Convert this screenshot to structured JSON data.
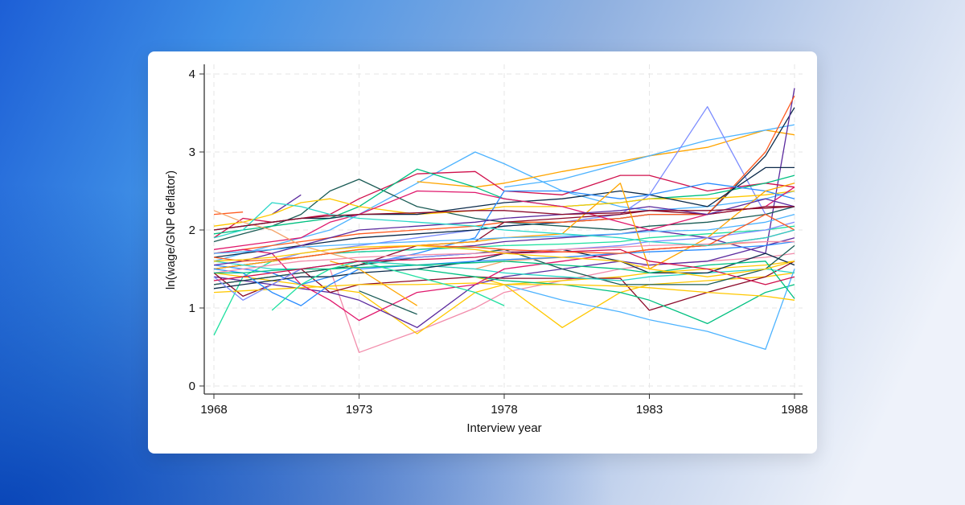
{
  "chart_data": {
    "type": "line",
    "title": "",
    "xlabel": "Interview year",
    "ylabel": "ln(wage/GNP deflator)",
    "xlim": [
      1968,
      1988
    ],
    "ylim": [
      0,
      4
    ],
    "xticks": [
      "1968",
      "1973",
      "1978",
      "1983",
      "1988"
    ],
    "yticks": [
      "0",
      "1",
      "2",
      "3",
      "4"
    ],
    "grid": true,
    "legend": "none",
    "x": [
      1968,
      1969,
      1970,
      1971,
      1972,
      1973,
      1975,
      1977,
      1978,
      1980,
      1982,
      1983,
      1985,
      1987,
      1988
    ],
    "series": [
      {
        "color": "#4DB3FF",
        "values": [
          1.6,
          1.7,
          1.8,
          1.9,
          2.0,
          2.2,
          2.6,
          3.0,
          2.85,
          2.5,
          2.3,
          2.25,
          2.3,
          2.4,
          2.5
        ]
      },
      {
        "color": "#FFA500",
        "values": [
          null,
          null,
          null,
          null,
          null,
          null,
          2.62,
          2.55,
          2.6,
          2.75,
          2.88,
          2.95,
          3.06,
          3.28,
          3.22
        ]
      },
      {
        "color": "#4DB3FF",
        "values": [
          null,
          null,
          null,
          null,
          null,
          null,
          null,
          null,
          2.55,
          2.65,
          2.85,
          2.95,
          3.15,
          3.28,
          3.35
        ]
      },
      {
        "color": "#7B8CFF",
        "values": [
          1.5,
          1.55,
          1.6,
          1.7,
          1.75,
          1.8,
          1.9,
          2.0,
          2.05,
          2.1,
          2.2,
          2.45,
          3.58,
          2.2,
          2.3
        ]
      },
      {
        "color": "#0B2A4A",
        "values": [
          1.65,
          1.7,
          1.75,
          1.8,
          1.85,
          1.9,
          1.95,
          2.0,
          2.05,
          2.1,
          2.15,
          2.2,
          2.2,
          2.95,
          3.57
        ]
      },
      {
        "color": "#5B2A9E",
        "values": [
          1.5,
          1.55,
          1.6,
          1.65,
          1.7,
          1.72,
          1.75,
          1.8,
          1.85,
          1.9,
          1.95,
          2.0,
          1.9,
          1.7,
          3.82
        ]
      },
      {
        "color": "#FF5A1F",
        "values": [
          1.7,
          1.75,
          1.8,
          1.85,
          1.9,
          1.95,
          2.0,
          2.05,
          2.1,
          2.1,
          2.15,
          2.2,
          2.2,
          3.0,
          3.72
        ]
      },
      {
        "color": "#F28CAB",
        "values": [
          null,
          null,
          null,
          null,
          1.5,
          0.43,
          0.7,
          1.0,
          1.2,
          1.35,
          1.5,
          1.55,
          1.6,
          1.65,
          1.7
        ]
      },
      {
        "color": "#1FE0A0",
        "values": [
          0.65,
          1.4,
          1.6,
          1.65,
          1.7,
          1.72,
          1.75,
          1.78,
          1.8,
          1.82,
          1.85,
          1.9,
          1.95,
          2.0,
          2.05
        ]
      },
      {
        "color": "#FFC800",
        "values": [
          1.45,
          1.4,
          1.35,
          1.3,
          1.25,
          1.2,
          0.67,
          1.2,
          1.3,
          1.35,
          1.4,
          1.45,
          1.5,
          1.55,
          1.6
        ]
      },
      {
        "color": "#FFC800",
        "values": [
          null,
          null,
          null,
          null,
          null,
          null,
          null,
          1.4,
          1.3,
          0.75,
          1.2,
          1.3,
          1.35,
          1.4,
          1.45
        ]
      },
      {
        "color": "#5B2A9E",
        "values": [
          1.4,
          1.35,
          1.3,
          1.25,
          1.2,
          1.1,
          0.75,
          1.3,
          1.4,
          1.5,
          1.6,
          1.55,
          1.6,
          1.8,
          1.9
        ]
      },
      {
        "color": "#8B0A2A",
        "values": [
          1.45,
          1.15,
          1.3,
          1.5,
          1.2,
          1.3,
          1.35,
          1.4,
          1.38,
          1.38,
          1.38,
          0.97,
          1.2,
          1.4,
          1.6
        ]
      },
      {
        "color": "#00C080",
        "values": [
          null,
          null,
          null,
          null,
          null,
          null,
          1.5,
          1.4,
          1.35,
          1.3,
          1.2,
          1.1,
          0.8,
          1.2,
          1.3
        ]
      },
      {
        "color": "#4DB3FF",
        "values": [
          null,
          null,
          null,
          null,
          null,
          null,
          null,
          null,
          1.3,
          1.1,
          0.95,
          0.85,
          0.7,
          0.47,
          1.5
        ]
      },
      {
        "color": "#D0104C",
        "values": [
          1.9,
          2.15,
          2.1,
          2.15,
          2.2,
          2.4,
          2.72,
          2.75,
          2.5,
          2.45,
          2.7,
          2.7,
          2.5,
          2.6,
          2.55
        ]
      },
      {
        "color": "#1A5B55",
        "values": [
          1.85,
          1.95,
          2.05,
          2.2,
          2.5,
          2.65,
          2.3,
          2.15,
          2.1,
          2.05,
          2.0,
          2.05,
          2.1,
          2.2,
          2.3
        ]
      },
      {
        "color": "#00C080",
        "values": [
          1.95,
          2.0,
          2.05,
          2.1,
          2.15,
          2.3,
          2.78,
          2.55,
          2.4,
          2.3,
          2.35,
          2.4,
          2.45,
          2.6,
          2.7
        ]
      },
      {
        "color": "#FF5A1F",
        "values": [
          2.2,
          2.23,
          null,
          null,
          null,
          null,
          null,
          null,
          null,
          null,
          null,
          null,
          null,
          null,
          null
        ]
      },
      {
        "color": "#5B2A9E",
        "values": [
          null,
          null,
          2.2,
          2.45,
          null,
          null,
          null,
          null,
          null,
          null,
          null,
          null,
          null,
          null,
          null
        ]
      },
      {
        "color": "#FFC800",
        "values": [
          2.05,
          2.1,
          2.2,
          2.35,
          2.4,
          2.3,
          2.2,
          2.25,
          2.3,
          2.3,
          2.35,
          2.4,
          2.4,
          2.45,
          2.5
        ]
      },
      {
        "color": "#0B2A4A",
        "values": [
          2.0,
          2.05,
          2.1,
          2.15,
          2.15,
          2.2,
          2.2,
          2.3,
          2.35,
          2.4,
          2.5,
          2.45,
          2.3,
          2.8,
          2.8
        ]
      },
      {
        "color": "#E0186C",
        "values": [
          1.75,
          1.8,
          1.85,
          1.9,
          2.1,
          2.2,
          2.5,
          2.48,
          2.4,
          2.3,
          2.1,
          2.0,
          2.2,
          2.3,
          2.55
        ]
      },
      {
        "color": "#2A8CFF",
        "values": [
          1.55,
          1.5,
          1.45,
          1.3,
          1.4,
          1.55,
          1.7,
          1.9,
          2.5,
          2.5,
          2.4,
          2.45,
          2.6,
          2.5,
          2.4
        ]
      },
      {
        "color": "#8B0A2A",
        "values": [
          1.3,
          1.35,
          1.4,
          1.45,
          1.5,
          1.55,
          1.8,
          1.85,
          2.1,
          2.15,
          2.2,
          2.25,
          2.2,
          2.3,
          2.3
        ]
      },
      {
        "color": "#FFA500",
        "values": [
          1.5,
          1.55,
          1.6,
          1.65,
          1.7,
          1.75,
          1.8,
          1.85,
          1.9,
          1.95,
          2.6,
          1.5,
          1.9,
          2.5,
          2.6
        ]
      },
      {
        "color": "#1A5B55",
        "values": [
          1.3,
          1.35,
          1.4,
          1.45,
          1.5,
          1.55,
          1.65,
          1.7,
          1.75,
          1.5,
          1.3,
          1.3,
          1.3,
          1.5,
          1.8
        ]
      },
      {
        "color": "#F4A46A",
        "values": [
          2.25,
          2.1,
          2.0,
          1.8,
          1.7,
          1.6,
          1.55,
          1.5,
          1.6,
          1.65,
          1.7,
          1.75,
          1.8,
          1.85,
          1.85
        ]
      },
      {
        "color": "#2AD6C8",
        "values": [
          1.6,
          1.55,
          1.5,
          1.5,
          1.55,
          1.6,
          1.55,
          1.5,
          1.45,
          1.4,
          1.35,
          1.4,
          1.45,
          1.5,
          1.45
        ]
      },
      {
        "color": "#0B2A4A",
        "values": [
          1.25,
          1.3,
          1.35,
          1.4,
          1.4,
          1.45,
          1.5,
          1.6,
          1.7,
          1.75,
          1.6,
          1.45,
          1.45,
          1.7,
          1.55
        ]
      },
      {
        "color": "#FFC800",
        "values": [
          1.2,
          1.22,
          1.24,
          1.26,
          1.28,
          1.3,
          1.3,
          1.32,
          1.3,
          1.3,
          1.28,
          1.26,
          1.2,
          1.15,
          1.1
        ]
      },
      {
        "color": "#E0186C",
        "values": [
          1.7,
          1.75,
          1.7,
          1.3,
          1.1,
          0.84,
          1.2,
          1.3,
          1.5,
          1.6,
          1.7,
          1.75,
          1.8,
          1.9,
          2.0
        ]
      },
      {
        "color": "#7B8CFF",
        "values": [
          1.4,
          1.1,
          1.3,
          1.5,
          1.55,
          1.6,
          1.65,
          1.7,
          1.72,
          1.75,
          1.8,
          1.85,
          1.9,
          2.0,
          2.1
        ]
      },
      {
        "color": "#2A8CFF",
        "values": [
          1.5,
          1.45,
          1.2,
          1.03,
          1.3,
          1.5,
          1.55,
          1.6,
          1.62,
          1.65,
          1.7,
          1.72,
          1.75,
          1.8,
          1.85
        ]
      },
      {
        "color": "#1A5B55",
        "values": [
          null,
          null,
          null,
          null,
          null,
          1.22,
          0.92,
          null,
          null,
          null,
          null,
          null,
          null,
          null,
          null
        ]
      },
      {
        "color": "#FFA500",
        "values": [
          null,
          null,
          null,
          null,
          1.6,
          1.5,
          1.03,
          null,
          null,
          null,
          null,
          null,
          null,
          null,
          null
        ]
      },
      {
        "color": "#1FE0A0",
        "values": [
          null,
          null,
          0.97,
          1.3,
          1.5,
          1.6,
          1.4,
          1.2,
          1.03,
          null,
          null,
          null,
          null,
          null,
          null
        ]
      },
      {
        "color": "#F28CAB",
        "values": [
          1.45,
          1.5,
          1.55,
          1.6,
          1.62,
          1.65,
          1.68,
          1.7,
          1.72,
          1.75,
          1.78,
          1.8,
          1.82,
          1.85,
          1.85
        ]
      },
      {
        "color": "#4DB3FF",
        "values": [
          1.7,
          1.72,
          1.75,
          1.78,
          1.8,
          1.82,
          1.85,
          1.88,
          1.9,
          1.92,
          1.95,
          1.98,
          2.0,
          2.1,
          2.2
        ]
      },
      {
        "color": "#00C080",
        "values": [
          1.45,
          1.45,
          1.48,
          1.5,
          1.5,
          1.52,
          1.55,
          1.58,
          1.6,
          1.55,
          1.5,
          1.45,
          1.55,
          1.6,
          1.12
        ]
      },
      {
        "color": "#5B2A9E",
        "values": [
          1.55,
          1.6,
          1.7,
          1.8,
          1.9,
          2.0,
          2.05,
          2.1,
          2.15,
          2.2,
          2.25,
          2.3,
          2.2,
          2.4,
          2.3
        ]
      },
      {
        "color": "#D0104C",
        "values": [
          1.35,
          1.4,
          1.45,
          1.5,
          1.55,
          1.6,
          1.62,
          1.65,
          1.7,
          1.72,
          1.75,
          1.6,
          1.5,
          1.3,
          1.4
        ]
      },
      {
        "color": "#FF5A1F",
        "values": [
          1.65,
          1.6,
          1.62,
          1.65,
          1.7,
          1.75,
          1.8,
          1.78,
          1.75,
          1.72,
          1.7,
          1.75,
          1.8,
          2.2,
          2.0
        ]
      },
      {
        "color": "#FFC800",
        "values": [
          1.6,
          1.62,
          1.65,
          1.7,
          1.75,
          1.78,
          1.8,
          1.75,
          1.7,
          1.65,
          1.6,
          1.5,
          1.4,
          1.5,
          1.6
        ]
      },
      {
        "color": "#2AD6C8",
        "values": [
          1.9,
          2.0,
          2.35,
          2.3,
          2.2,
          2.15,
          2.1,
          2.05,
          2.0,
          1.95,
          1.9,
          1.85,
          1.8,
          1.9,
          2.0
        ]
      },
      {
        "color": "#8B0A2A",
        "values": [
          2.0,
          2.05,
          2.1,
          2.15,
          2.18,
          2.2,
          2.22,
          2.25,
          2.25,
          2.2,
          2.22,
          2.25,
          2.25,
          2.28,
          2.3
        ]
      }
    ]
  }
}
